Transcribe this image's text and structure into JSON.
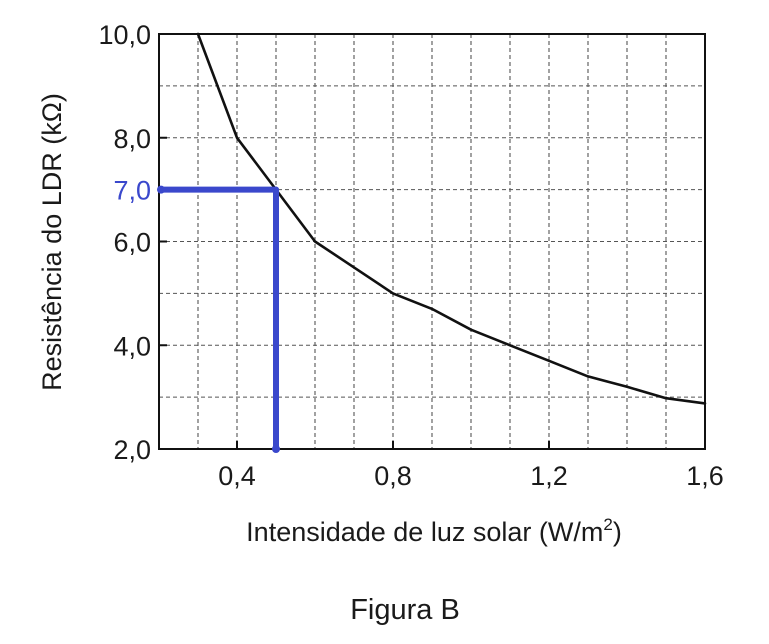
{
  "chart_data": {
    "type": "line",
    "xlabel": "Intensidade de luz solar (W/m",
    "xlabel_sup": "2",
    "xlabel_end": ")",
    "ylabel": "Resistência do LDR (kΩ)",
    "caption": "Figura B",
    "xlim": [
      0.2,
      1.6
    ],
    "ylim": [
      2.0,
      10.0
    ],
    "x_ticks": [
      0.4,
      0.8,
      1.2,
      1.6
    ],
    "x_tick_labels": [
      "0,4",
      "0,8",
      "1,2",
      "1,6"
    ],
    "y_ticks": [
      2.0,
      4.0,
      6.0,
      8.0,
      10.0
    ],
    "y_tick_labels": [
      "2,0",
      "4,0",
      "6,0",
      "8,0",
      "10,0"
    ],
    "grid": true,
    "grid_x_step": 0.1,
    "grid_y_step": 1.0,
    "series": [
      {
        "color": "#111111",
        "x": [
          0.3,
          0.4,
          0.5,
          0.6,
          0.7,
          0.8,
          0.9,
          1.0,
          1.1,
          1.2,
          1.3,
          1.4,
          1.5,
          1.6
        ],
        "y": [
          10.0,
          8.0,
          7.0,
          6.0,
          5.5,
          5.0,
          4.7,
          4.3,
          4.0,
          3.7,
          3.4,
          3.2,
          2.98,
          2.88
        ]
      }
    ],
    "highlight": {
      "x": 0.5,
      "y": 7.0,
      "label": "7,0",
      "color": "#3a48cc"
    }
  }
}
